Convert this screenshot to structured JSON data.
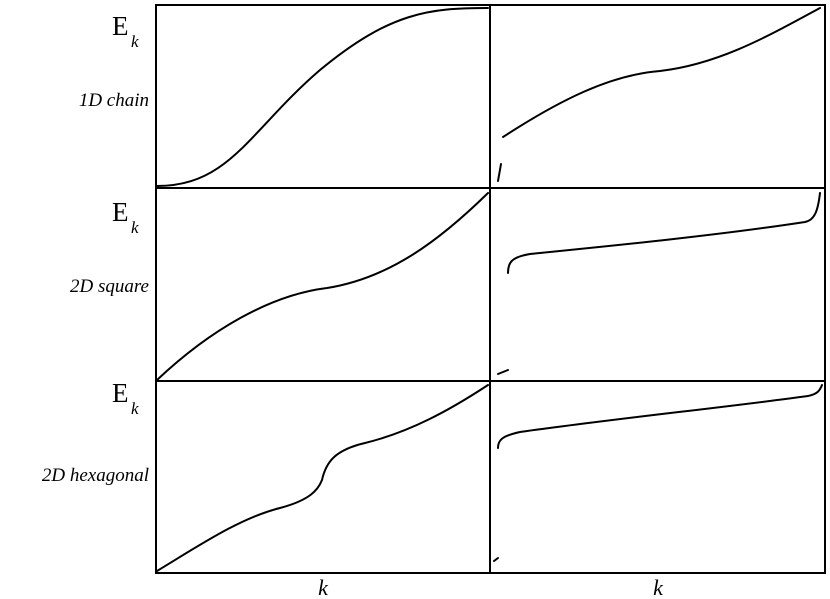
{
  "rows": [
    {
      "energy_label": "E",
      "energy_subscript": "k",
      "label": "1D chain"
    },
    {
      "energy_label": "E",
      "energy_subscript": "k",
      "label": "2D square"
    },
    {
      "energy_label": "E",
      "energy_subscript": "k",
      "label": "2D hexagonal"
    }
  ],
  "x_labels": [
    "k",
    "k"
  ]
}
